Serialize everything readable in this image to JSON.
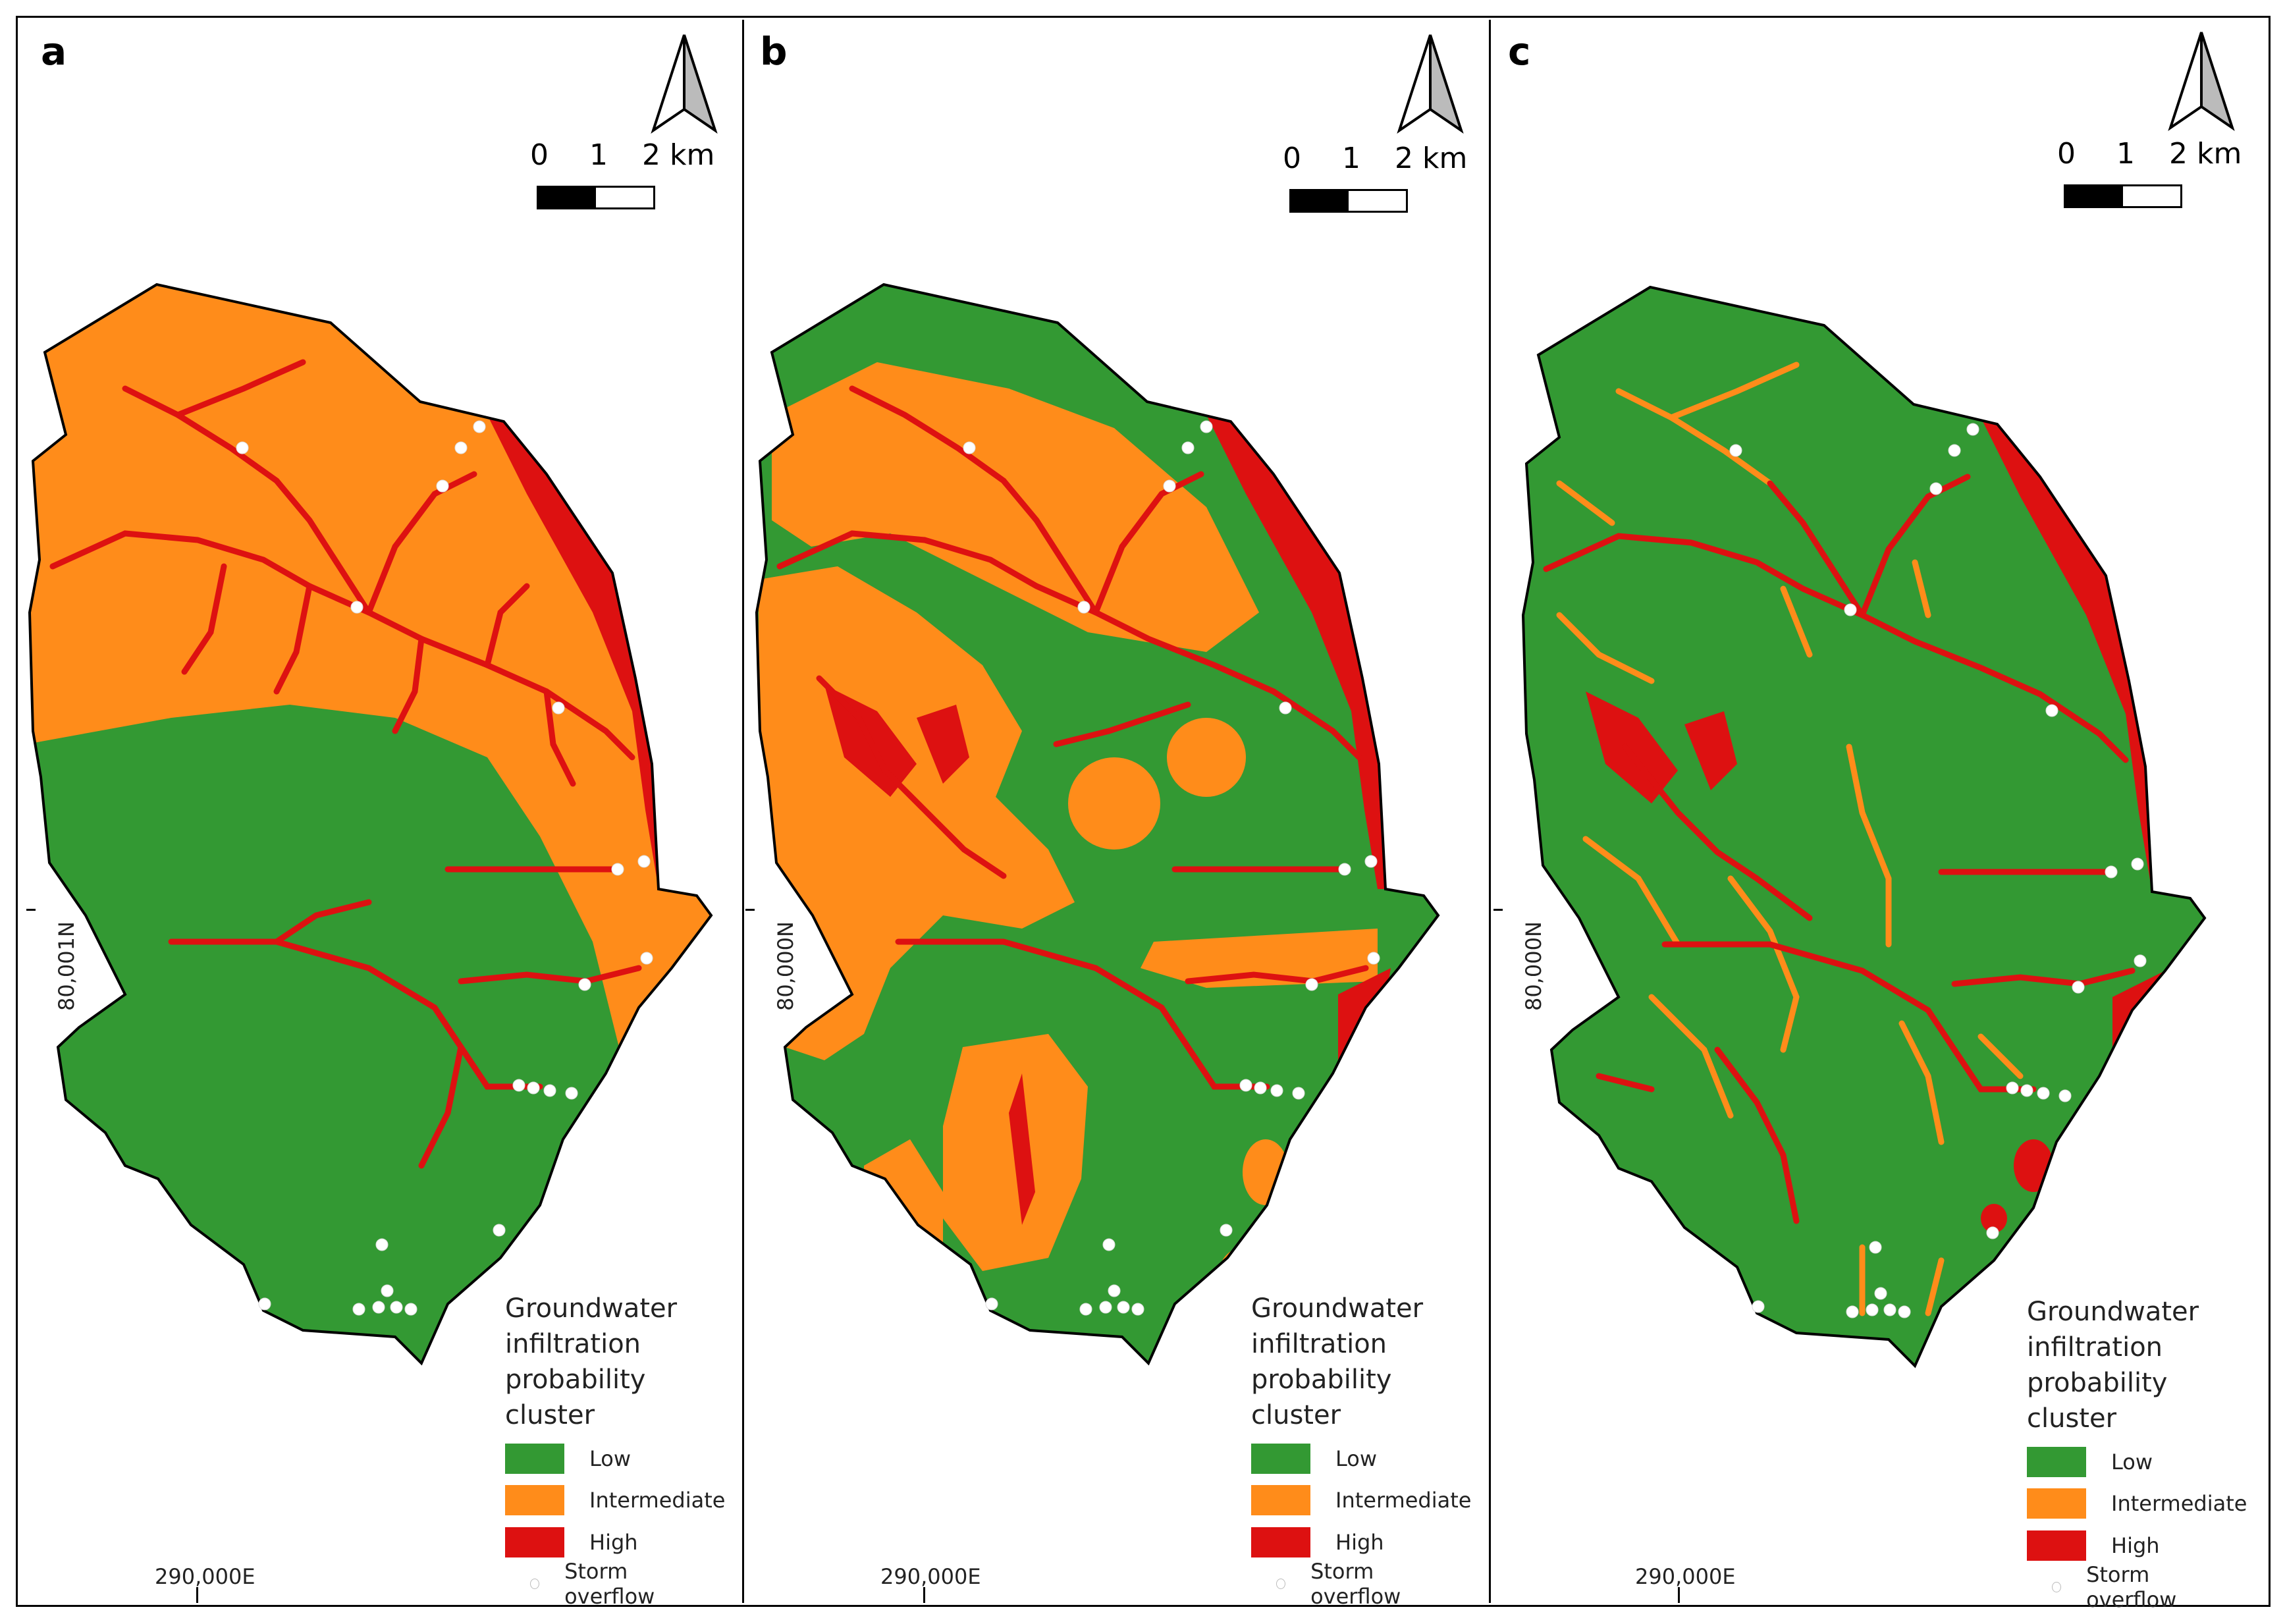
{
  "panels": [
    {
      "label": "a",
      "scale": {
        "n0": "0",
        "n1": "1",
        "n2": "2 km"
      },
      "coord_x": "290,000E",
      "coord_y": "80,001N",
      "legend": {
        "title_lines": [
          "Groundwater",
          "infiltration",
          "probability",
          "cluster"
        ],
        "items": [
          "Low",
          "Intermediate",
          "High",
          "Storm overflow"
        ]
      }
    },
    {
      "label": "b",
      "scale": {
        "n0": "0",
        "n1": "1",
        "n2": "2 km"
      },
      "coord_x": "290,000E",
      "coord_y": "80,000N",
      "legend": {
        "title_lines": [
          "Groundwater",
          "infiltration",
          "probability",
          "cluster"
        ],
        "items": [
          "Low",
          "Intermediate",
          "High",
          "Storm overflow"
        ]
      }
    },
    {
      "label": "c",
      "scale": {
        "n0": "0",
        "n1": "1",
        "n2": "2 km"
      },
      "coord_x": "290,000E",
      "coord_y": "80,000N",
      "legend": {
        "title_lines": [
          "Groundwater",
          "infiltration",
          "probability",
          "cluster"
        ],
        "items": [
          "Low",
          "Intermediate",
          "High",
          "Storm overflow"
        ]
      }
    }
  ],
  "colors": {
    "low": "#339933",
    "intermediate": "#ff8c1a",
    "high": "#dd1111",
    "storm_overflow": "#ffffff",
    "outline": "#000000"
  },
  "icons": [
    "north-arrow-icon",
    "scale-bar",
    "storm-overflow-dot"
  ]
}
